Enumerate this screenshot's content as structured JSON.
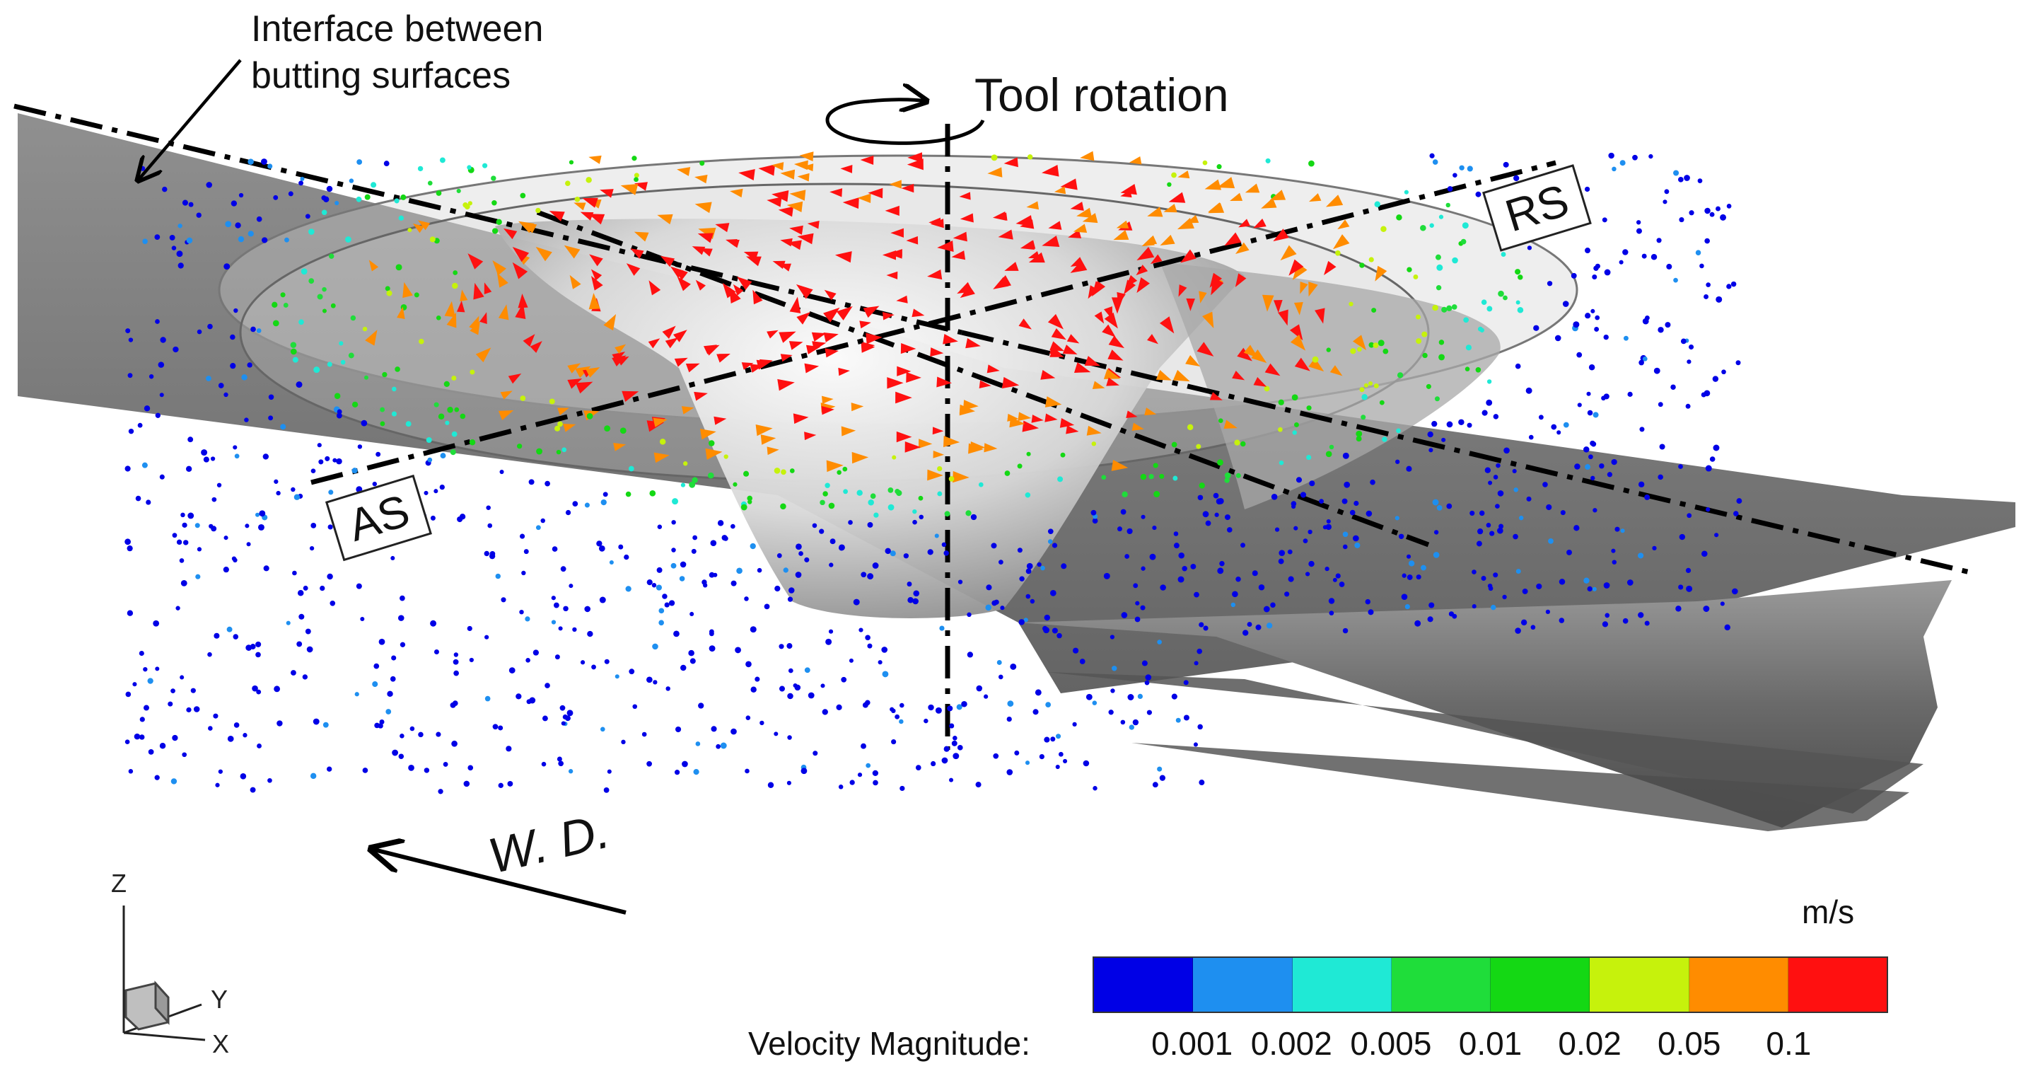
{
  "annotations": {
    "interface_line1": "Interface between",
    "interface_line2": "butting surfaces",
    "tool_rotation": "Tool rotation",
    "rs": "RS",
    "as": "AS",
    "welding_direction": "W. D."
  },
  "axes_triad": {
    "z": "Z",
    "y": "Y",
    "x": "X"
  },
  "legend": {
    "unit": "m/s",
    "title": "Velocity Magnitude:",
    "ticks": [
      "0.001",
      "0.002",
      "0.005",
      "0.01",
      "0.02",
      "0.05",
      "0.1"
    ],
    "colors": [
      "#0000e6",
      "#1e8ff0",
      "#1fe9d5",
      "#1fdd3a",
      "#14d814",
      "#c6f20c",
      "#ff8c00",
      "#ff1010"
    ]
  },
  "colors": {
    "plate": "#6e6e6e",
    "low_velocity": "#0000e6",
    "high_velocity": "#ff1010"
  }
}
